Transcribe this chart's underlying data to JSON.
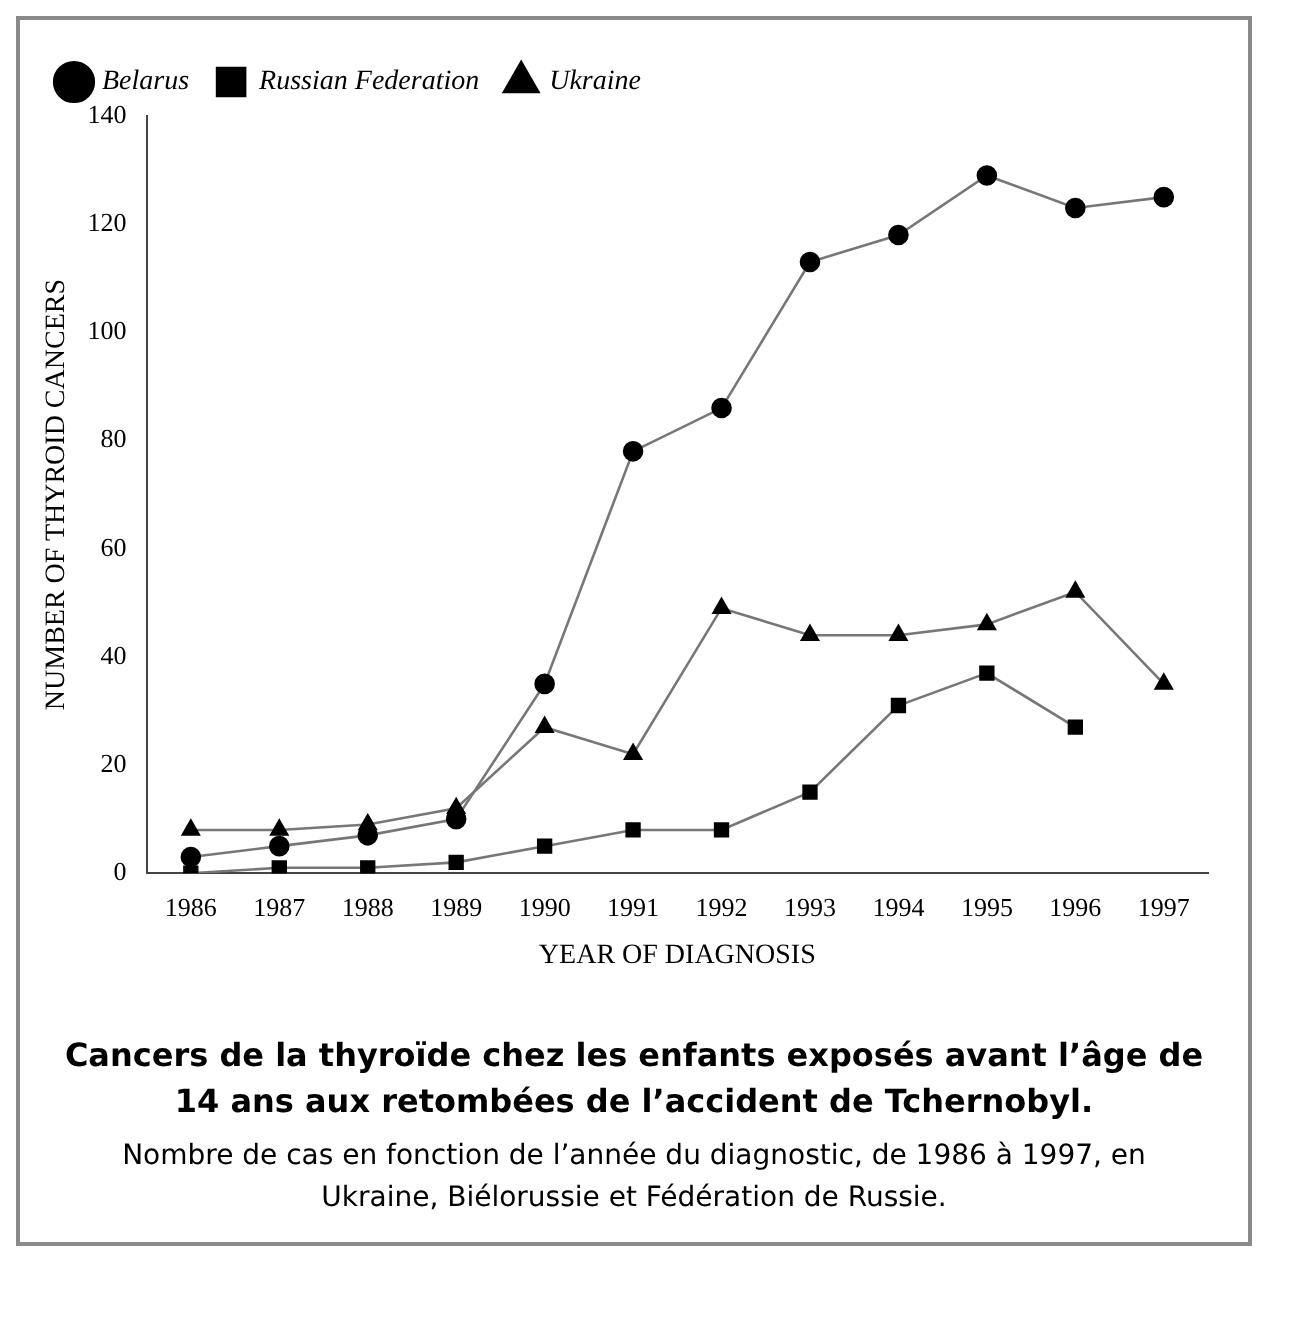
{
  "chart_data": {
    "type": "line",
    "title": "Cancers de la thyroïde chez les enfants exposés avant l’âge de 14 ans aux retombées de l’accident de Tchernobyl.",
    "subtitle": "Nombre de cas en fonction de l’année du diagnostic, de 1986 à 1997, en Ukraine, Biélorussie et Fédération de Russie.",
    "xlabel": "YEAR OF DIAGNOSIS",
    "ylabel": "NUMBER OF THYROID CANCERS",
    "categories": [
      "1986",
      "1987",
      "1988",
      "1989",
      "1990",
      "1991",
      "1992",
      "1993",
      "1994",
      "1995",
      "1996",
      "1997"
    ],
    "series": [
      {
        "name": "Belarus",
        "color": "#000000",
        "marker": "circle",
        "values": [
          3,
          5,
          7,
          10,
          35,
          78,
          86,
          113,
          118,
          129,
          123,
          125
        ]
      },
      {
        "name": "Russian Federation",
        "color": "#000000",
        "marker": "square",
        "values": [
          0,
          1,
          1,
          2,
          5,
          8,
          8,
          15,
          31,
          37,
          27,
          null
        ]
      },
      {
        "name": "Ukraine",
        "color": "#000000",
        "marker": "triangle",
        "values": [
          8,
          8,
          9,
          12,
          27,
          22,
          49,
          44,
          44,
          46,
          52,
          35
        ]
      }
    ],
    "ylim": [
      0,
      140
    ],
    "yticks": [
      0,
      20,
      40,
      60,
      80,
      100,
      120,
      140
    ],
    "grid": false,
    "legend": "top left"
  }
}
